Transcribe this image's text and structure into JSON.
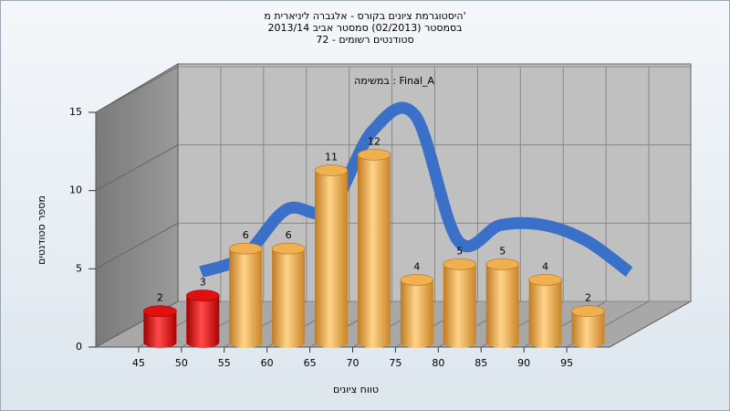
{
  "chart_data": {
    "type": "histogram",
    "title": [
      "היסטוגרמת ציונים בקורס - אלגברה ליניארית מ'",
      "בסמסטר (02/2013) סמסטר אביב 2013/14",
      "סטודנטים רשומים - 72"
    ],
    "annotation": "במשימה : Final_A",
    "xlabel": "טווח ציונים",
    "ylabel": "מספר סטודנטים",
    "bins": [
      45,
      50,
      55,
      60,
      65,
      70,
      75,
      80,
      85,
      90,
      95,
      100
    ],
    "values": [
      2,
      3,
      6,
      6,
      11,
      12,
      4,
      5,
      5,
      4,
      2
    ],
    "colors": [
      "red",
      "red",
      "orange",
      "orange",
      "orange",
      "orange",
      "orange",
      "orange",
      "orange",
      "orange",
      "orange"
    ],
    "line_color": "#3a70c8",
    "xlim": [
      40,
      100
    ],
    "xticks": [
      45,
      50,
      55,
      60,
      65,
      70,
      75,
      80,
      85,
      90,
      95
    ],
    "ylim": [
      0,
      15
    ],
    "yticks": [
      0,
      5,
      10,
      15
    ],
    "grid": true
  }
}
